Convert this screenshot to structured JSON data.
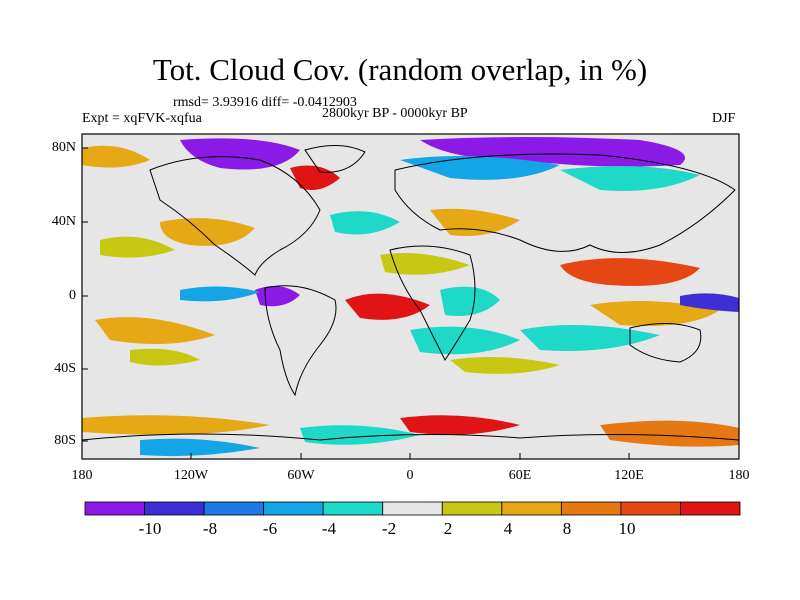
{
  "title": "Tot. Cloud Cov. (random overlap, in %)",
  "stats": "rmsd= 3.93916 diff= -0.0412903",
  "period": "2800kyr BP - 0000kyr BP",
  "experiment": "Expt = xqFVK-xqfua",
  "season": "DJF",
  "lat_labels": [
    "80N",
    "40N",
    "0",
    "40S",
    "80S"
  ],
  "lon_labels": [
    "180",
    "120W",
    "60W",
    "0",
    "60E",
    "120E",
    "180"
  ],
  "colorbar": {
    "labels": [
      "-10",
      "-8",
      "-6",
      "-4",
      "-2",
      "2",
      "4",
      "8",
      "10"
    ],
    "colors": [
      "#8b1ae6",
      "#3d2ed6",
      "#1e78e6",
      "#14a5e6",
      "#1ed8c8",
      "#e6e6e6",
      "#c8c814",
      "#e6a814",
      "#e67814",
      "#e64614",
      "#e01414"
    ]
  }
}
